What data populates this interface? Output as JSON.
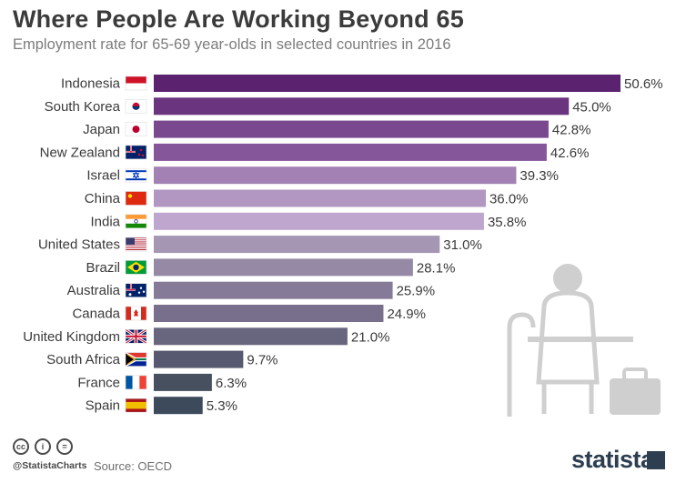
{
  "title": "Where People Are Working Beyond 65",
  "subtitle": "Employment rate for 65-69 year-olds in selected countries in 2016",
  "footer": {
    "handle": "@StatistaCharts",
    "source": "Source: OECD",
    "brand": "statista",
    "license_icons": [
      "cc",
      "by",
      "="
    ]
  },
  "colors": {
    "bar_top": "#5a236e",
    "bar_mid": "#bfa6cf",
    "bar_bottom": "#34495e",
    "illustration": "#cfcfcf"
  },
  "chart_data": {
    "type": "bar",
    "orientation": "horizontal",
    "title": "Where People Are Working Beyond 65",
    "subtitle": "Employment rate for 65-69 year-olds in selected countries in 2016",
    "categories": [
      "Indonesia",
      "South Korea",
      "Japan",
      "New Zealand",
      "Israel",
      "China",
      "India",
      "United States",
      "Brazil",
      "Australia",
      "Canada",
      "United Kingdom",
      "South Africa",
      "France",
      "Spain"
    ],
    "values": [
      50.6,
      45.0,
      42.8,
      42.6,
      39.3,
      36.0,
      35.8,
      31.0,
      28.1,
      25.9,
      24.9,
      21.0,
      9.7,
      6.3,
      5.3
    ],
    "value_labels": [
      "50.6%",
      "45.0%",
      "42.8%",
      "42.6%",
      "39.3%",
      "36.0%",
      "35.8%",
      "31.0%",
      "28.1%",
      "25.9%",
      "24.9%",
      "21.0%",
      "9.7%",
      "6.3%",
      "5.3%"
    ],
    "bar_colors": [
      "#5b236f",
      "#6a347e",
      "#7a488f",
      "#86569b",
      "#a381b5",
      "#b197c2",
      "#bfa6cf",
      "#a597b3",
      "#9689a6",
      "#857b98",
      "#786f8c",
      "#68657f",
      "#56596f",
      "#46505f",
      "#3d4a5c"
    ],
    "flags": [
      "indonesia",
      "south-korea",
      "japan",
      "new-zealand",
      "israel",
      "china",
      "india",
      "united-states",
      "brazil",
      "australia",
      "canada",
      "united-kingdom",
      "south-africa",
      "france",
      "spain"
    ],
    "xlim": [
      0,
      50.6
    ],
    "unit": "%",
    "grid": false,
    "legend": "none"
  }
}
